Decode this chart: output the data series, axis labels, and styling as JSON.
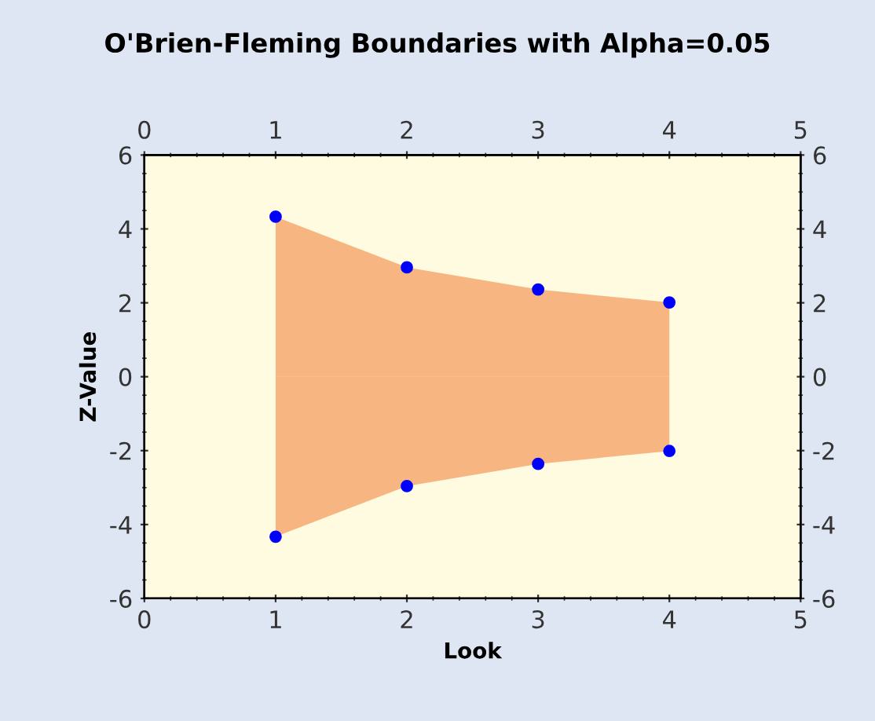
{
  "chart_data": {
    "type": "area",
    "title": "O'Brien-Fleming Boundaries with Alpha=0.05",
    "xlabel": "Look",
    "ylabel": "Z-Value",
    "x": [
      1,
      2,
      3,
      4
    ],
    "series": [
      {
        "color": "#f4a870",
        "values": [
          4.33,
          2.96,
          2.36,
          2.01
        ]
      },
      {
        "color": "#f4a870",
        "values": [
          -4.33,
          -2.96,
          -2.36,
          -2.01
        ]
      },
      {
        "type": "scatter",
        "marker": "circle",
        "color": "#0000ff",
        "values": [
          4.33,
          2.96,
          2.36,
          2.01
        ]
      },
      {
        "type": "scatter",
        "marker": "circle",
        "color": "#0000ff",
        "values": [
          -4.33,
          -2.96,
          -2.36,
          -2.01
        ]
      }
    ],
    "xlim": [
      0,
      5
    ],
    "xticks": [
      0,
      1,
      2,
      3,
      4,
      5
    ],
    "x2lim": [
      0,
      5
    ],
    "x2ticks": [
      0,
      1,
      2,
      3,
      4,
      5
    ],
    "ylim": [
      -6,
      6
    ],
    "yticks": [
      -6,
      -4,
      -2,
      0,
      2,
      4,
      6
    ],
    "y2lim": [
      -6,
      6
    ],
    "y2ticks": [
      -6,
      -4,
      -2,
      0,
      2,
      4,
      6
    ],
    "grid": false,
    "legend": false
  }
}
